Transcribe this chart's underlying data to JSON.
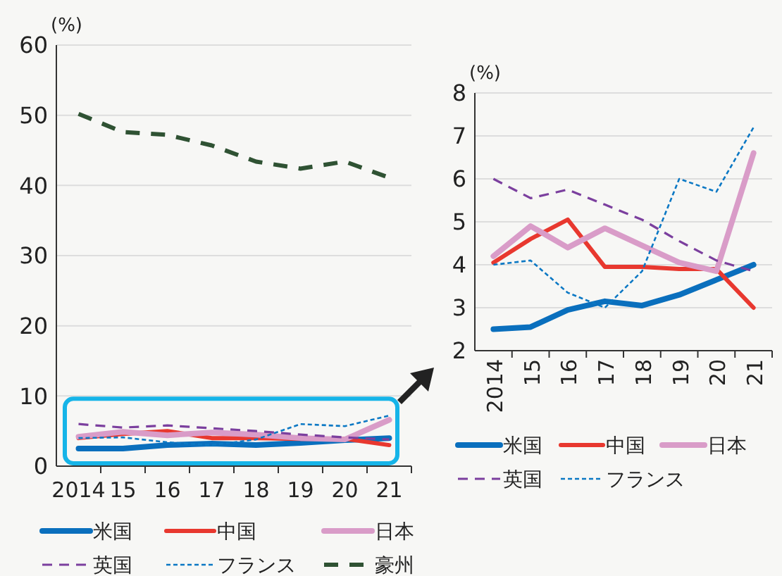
{
  "chart_data": [
    {
      "type": "line",
      "ylabel": "(%)",
      "categories": [
        "2014",
        "15",
        "16",
        "17",
        "18",
        "19",
        "20",
        "21"
      ],
      "ylim": [
        0,
        60
      ],
      "yticks": [
        0,
        10,
        20,
        30,
        40,
        50,
        60
      ],
      "grid": "y",
      "legend": "bottom",
      "series": [
        {
          "name": "米国",
          "color": "#0a6fbd",
          "line_style": "solid",
          "values": [
            2.5,
            2.5,
            3.0,
            3.2,
            3.0,
            3.3,
            3.7,
            4.0
          ]
        },
        {
          "name": "中国",
          "color": "#e8382f",
          "line_style": "solid",
          "values": [
            4.0,
            4.6,
            5.0,
            4.0,
            4.0,
            3.9,
            3.9,
            3.0
          ]
        },
        {
          "name": "日本",
          "color": "#d99cc8",
          "line_style": "solid",
          "values": [
            4.2,
            4.9,
            4.4,
            4.8,
            4.5,
            4.0,
            3.8,
            6.6
          ]
        },
        {
          "name": "英国",
          "color": "#7b3f9e",
          "line_style": "dashed",
          "values": [
            6.0,
            5.5,
            5.8,
            5.4,
            5.0,
            4.5,
            4.1,
            3.8
          ]
        },
        {
          "name": "フランス",
          "color": "#0b78c4",
          "line_style": "dotted",
          "values": [
            4.0,
            4.1,
            3.4,
            3.0,
            3.8,
            6.0,
            5.7,
            7.2
          ]
        },
        {
          "name": "豪州",
          "color": "#2f5233",
          "line_style": "dashed",
          "values": [
            50.2,
            47.6,
            47.2,
            45.7,
            43.4,
            42.4,
            43.4,
            41.1
          ]
        }
      ]
    },
    {
      "type": "line",
      "ylabel": "(%)",
      "categories": [
        "2014",
        "15",
        "16",
        "17",
        "18",
        "19",
        "20",
        "21"
      ],
      "ylim": [
        2,
        8
      ],
      "yticks": [
        2,
        3,
        4,
        5,
        6,
        7,
        8
      ],
      "grid": "y",
      "legend": "bottom",
      "series": [
        {
          "name": "米国",
          "color": "#0a6fbd",
          "line_style": "solid",
          "values": [
            2.5,
            2.55,
            2.95,
            3.15,
            3.05,
            3.3,
            3.65,
            4.0
          ]
        },
        {
          "name": "中国",
          "color": "#e8382f",
          "line_style": "solid",
          "values": [
            4.05,
            4.6,
            5.05,
            3.95,
            3.95,
            3.9,
            3.9,
            3.0
          ]
        },
        {
          "name": "日本",
          "color": "#d99cc8",
          "line_style": "solid",
          "values": [
            4.2,
            4.9,
            4.4,
            4.85,
            4.45,
            4.05,
            3.85,
            6.6
          ]
        },
        {
          "name": "英国",
          "color": "#7b3f9e",
          "line_style": "dashed",
          "values": [
            6.0,
            5.55,
            5.75,
            5.4,
            5.05,
            4.55,
            4.1,
            3.85
          ]
        },
        {
          "name": "フランス",
          "color": "#0b78c4",
          "line_style": "dotted",
          "values": [
            4.0,
            4.1,
            3.35,
            3.0,
            3.85,
            6.0,
            5.7,
            7.2
          ]
        }
      ]
    }
  ]
}
